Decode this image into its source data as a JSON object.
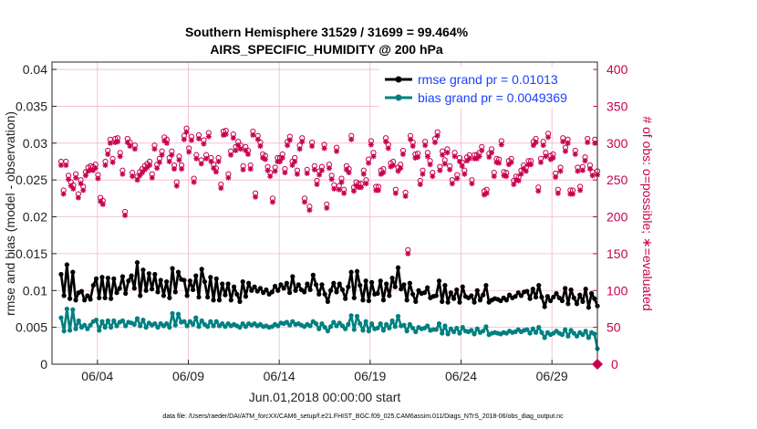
{
  "chart_data": {
    "type": "line",
    "title_line1": "Southern Hemisphere 31529 / 31699 = 99.464%",
    "title_line2": "AIRS_SPECIFIC_HUMIDITY @ 200 hPa",
    "ylabel": "rmse and bias (model - observation)",
    "y2label": "# of obs: o=possible; ∗=evaluated",
    "xlabel": "Jun.01,2018 00:00:00 start",
    "footnote": "data file: /Users/raeder/DAI/ATM_forcXX/CAM6_setup/f.e21.FHIST_BGC.f09_025.CAM6assim.011/Diags_NTrS_2018-06/obs_diag_output.nc",
    "ylim": [
      0,
      0.041
    ],
    "y2lim": [
      0,
      410
    ],
    "xlim": [
      0.5,
      30.5
    ],
    "yticks": [
      "0",
      "0.005",
      "0.01",
      "0.015",
      "0.02",
      "0.025",
      "0.03",
      "0.035",
      "0.04"
    ],
    "y2ticks": [
      "0",
      "50",
      "100",
      "150",
      "200",
      "250",
      "300",
      "350",
      "400"
    ],
    "xticks": [
      {
        "day": 3,
        "label": "06/04"
      },
      {
        "day": 8,
        "label": "06/09"
      },
      {
        "day": 13,
        "label": "06/14"
      },
      {
        "day": 18,
        "label": "06/19"
      },
      {
        "day": 23,
        "label": "06/24"
      },
      {
        "day": 28,
        "label": "06/29"
      }
    ],
    "legend": [
      {
        "label": "rmse grand pr = 0.01013",
        "color": "#000000"
      },
      {
        "label": "bias grand pr = 0.0049369",
        "color": "#008080"
      }
    ],
    "series": [
      {
        "name": "rmse",
        "color": "#000000",
        "values": [
          0.0122,
          0.0093,
          0.0135,
          0.0089,
          0.0125,
          0.0087,
          0.0097,
          0.0099,
          0.0087,
          0.0093,
          0.0088,
          0.0107,
          0.0116,
          0.009,
          0.0118,
          0.009,
          0.0117,
          0.0089,
          0.0116,
          0.0097,
          0.0103,
          0.0119,
          0.0096,
          0.0113,
          0.012,
          0.0103,
          0.0138,
          0.0093,
          0.0128,
          0.01,
          0.0123,
          0.0102,
          0.0122,
          0.0098,
          0.0114,
          0.0093,
          0.0112,
          0.009,
          0.013,
          0.0098,
          0.0125,
          0.0115,
          0.0114,
          0.0093,
          0.0113,
          0.0101,
          0.012,
          0.0091,
          0.0129,
          0.0112,
          0.0091,
          0.0118,
          0.0087,
          0.0116,
          0.0087,
          0.0109,
          0.0094,
          0.0109,
          0.0087,
          0.0105,
          0.0095,
          0.0085,
          0.0112,
          0.0092,
          0.011,
          0.01,
          0.0105,
          0.0099,
          0.0103,
          0.0097,
          0.0101,
          0.0095,
          0.0098,
          0.0106,
          0.01,
          0.0108,
          0.0103,
          0.011,
          0.0097,
          0.0119,
          0.01,
          0.0108,
          0.0101,
          0.0098,
          0.0109,
          0.0101,
          0.0121,
          0.0108,
          0.0095,
          0.0108,
          0.0095,
          0.0085,
          0.01,
          0.011,
          0.0098,
          0.0109,
          0.0101,
          0.0089,
          0.0105,
          0.0125,
          0.009,
          0.0126,
          0.0107,
          0.0087,
          0.0113,
          0.0086,
          0.0111,
          0.0095,
          0.0096,
          0.0113,
          0.0087,
          0.0109,
          0.0093,
          0.0117,
          0.0105,
          0.0131,
          0.0102,
          0.0108,
          0.0087,
          0.011,
          0.0095,
          0.0085,
          0.01,
          0.0096,
          0.0097,
          0.0104,
          0.009,
          0.0092,
          0.0093,
          0.0113,
          0.0085,
          0.0107,
          0.0084,
          0.0097,
          0.0089,
          0.0101,
          0.0084,
          0.0105,
          0.0092,
          0.009,
          0.0093,
          0.0084,
          0.01,
          0.0087,
          0.0094,
          0.0107,
          0.0084,
          0.0087,
          0.0089,
          0.0088,
          0.0086,
          0.009,
          0.0087,
          0.0094,
          0.009,
          0.0092,
          0.0097,
          0.0093,
          0.0098,
          0.0099,
          0.0089,
          0.0102,
          0.0091,
          0.0107,
          0.0091,
          0.0078,
          0.0092,
          0.0086,
          0.0091,
          0.0096,
          0.009,
          0.0086,
          0.0103,
          0.0082,
          0.0101,
          0.009,
          0.0082,
          0.0094,
          0.0085,
          0.0102,
          0.0077,
          0.0096,
          0.0089,
          0.0079
        ]
      },
      {
        "name": "bias",
        "color": "#008080",
        "values": [
          0.0063,
          0.0045,
          0.0075,
          0.0046,
          0.0074,
          0.0048,
          0.0059,
          0.005,
          0.0053,
          0.0048,
          0.0053,
          0.0058,
          0.006,
          0.0046,
          0.0058,
          0.005,
          0.0059,
          0.005,
          0.0059,
          0.0052,
          0.0057,
          0.0059,
          0.0052,
          0.0057,
          0.0056,
          0.0054,
          0.0062,
          0.0052,
          0.006,
          0.005,
          0.0056,
          0.0053,
          0.0055,
          0.005,
          0.0055,
          0.0052,
          0.0055,
          0.005,
          0.0069,
          0.0053,
          0.0068,
          0.0057,
          0.0058,
          0.0052,
          0.0058,
          0.0054,
          0.0063,
          0.0051,
          0.0059,
          0.0054,
          0.0051,
          0.0058,
          0.0052,
          0.0058,
          0.0052,
          0.0055,
          0.0051,
          0.0055,
          0.0052,
          0.0054,
          0.0052,
          0.005,
          0.0055,
          0.0051,
          0.0055,
          0.0053,
          0.0055,
          0.0052,
          0.0054,
          0.0051,
          0.0052,
          0.005,
          0.0051,
          0.0054,
          0.0052,
          0.0056,
          0.0055,
          0.0057,
          0.0053,
          0.0058,
          0.0054,
          0.0055,
          0.0053,
          0.0051,
          0.0054,
          0.0052,
          0.0058,
          0.0055,
          0.0048,
          0.0055,
          0.005,
          0.0045,
          0.0051,
          0.0057,
          0.0052,
          0.0056,
          0.0052,
          0.0048,
          0.0054,
          0.0066,
          0.0047,
          0.0065,
          0.0055,
          0.0046,
          0.0058,
          0.0045,
          0.0055,
          0.0048,
          0.0049,
          0.0055,
          0.0046,
          0.0054,
          0.0049,
          0.0059,
          0.0051,
          0.0065,
          0.0052,
          0.0053,
          0.0045,
          0.0054,
          0.0049,
          0.0044,
          0.005,
          0.0048,
          0.0049,
          0.0052,
          0.0046,
          0.0047,
          0.0047,
          0.0055,
          0.0042,
          0.0052,
          0.0041,
          0.0048,
          0.0044,
          0.0049,
          0.0042,
          0.005,
          0.0045,
          0.0044,
          0.0046,
          0.0041,
          0.0048,
          0.0043,
          0.0045,
          0.0051,
          0.004,
          0.0042,
          0.0043,
          0.0042,
          0.0041,
          0.0043,
          0.0042,
          0.0045,
          0.0043,
          0.0044,
          0.0047,
          0.0044,
          0.0046,
          0.0047,
          0.0042,
          0.0048,
          0.0043,
          0.005,
          0.0043,
          0.0036,
          0.0043,
          0.004,
          0.0042,
          0.0045,
          0.0042,
          0.004,
          0.0047,
          0.0038,
          0.0046,
          0.0042,
          0.0038,
          0.0043,
          0.004,
          0.0045,
          0.0036,
          0.0043,
          0.0041,
          0.0021
        ]
      },
      {
        "name": "obs_count",
        "color": "#c8004f",
        "axis": "right",
        "values": [
          270,
          231,
          270,
          251,
          242,
          238,
          253,
          226,
          245,
          236,
          256,
          262,
          264,
          263,
          266,
          252,
          221,
          217,
          270,
          285,
          300,
          274,
          301,
          302,
          282,
          258,
          202,
          301,
          296,
          255,
          292,
          250,
          256,
          260,
          264,
          267,
          270,
          253,
          292,
          266,
          274,
          284,
          303,
          300,
          275,
          284,
          265,
          242,
          277,
          265,
          305,
          315,
          288,
          304,
          247,
          279,
          306,
          272,
          299,
          279,
          309,
          275,
          266,
          261,
          275,
          239,
          311,
          312,
          253,
          284,
          307,
          290,
          297,
          292,
          264,
          290,
          285,
          265,
          311,
          227,
          305,
          296,
          280,
          278,
          263,
          255,
          220,
          262,
          275,
          275,
          280,
          260,
          297,
          304,
          270,
          275,
          258,
          292,
          302,
          220,
          259,
          209,
          296,
          264,
          244,
          257,
          263,
          293,
          212,
          266,
          251,
          238,
          289,
          237,
          247,
          232,
          264,
          260,
          305,
          235,
          242,
          240,
          240,
          258,
          245,
          273,
          298,
          282,
          236,
          236,
          258,
          260,
          302,
          293,
          268,
          270,
          232,
          262,
          266,
          285,
          228,
          150,
          305,
          296,
          280,
          281,
          244,
          258,
          297,
          282,
          271,
          255,
          301,
          310,
          263,
          284,
          272,
          287,
          264,
          245,
          282,
          252,
          275,
          269,
          258,
          276,
          279,
          245,
          279,
          279,
          282,
          290,
          230,
          232,
          281,
          287,
          255,
          274,
          273,
          298,
          256,
          255,
          271,
          274,
          244,
          250,
          249,
          258,
          265,
          262,
          271,
          271,
          297,
          301,
          235,
          274,
          297,
          282,
          308,
          278,
          280,
          254,
          232,
          262,
          302,
          289,
          300,
          231,
          231,
          285,
          262,
          236,
          263,
          276,
          301,
          265,
          256,
          300,
          257
        ]
      }
    ]
  },
  "right_corner_marker": "0"
}
